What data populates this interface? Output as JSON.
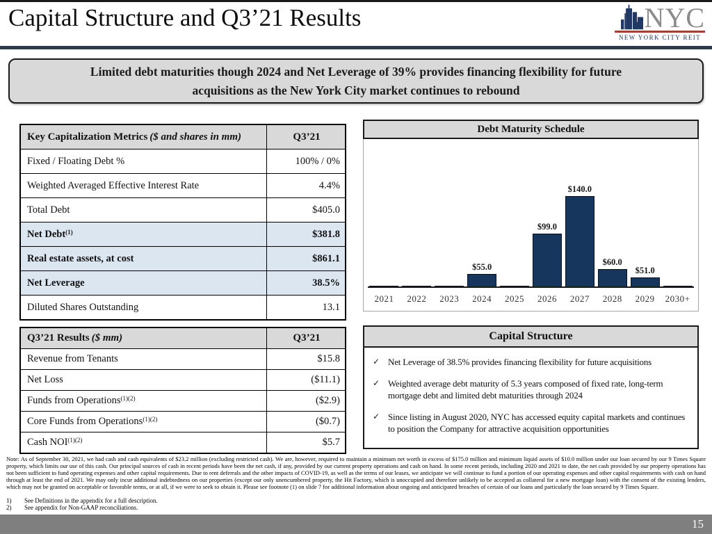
{
  "slide": {
    "title": "Capital Structure and Q3’21 Results",
    "banner": "Limited debt maturities though 2024 and Net Leverage of 39% provides financing flexibility for future acquisitions as the New York City market continues to rebound",
    "page_number": "15"
  },
  "logo": {
    "text": "NYC",
    "subtext": "NEW YORK CITY REIT"
  },
  "colors": {
    "bar_navy": "#17365D",
    "header_gray": "#D9D9D9",
    "highlight_blue": "#DCE6F1",
    "footer_gray": "#7F7F7F",
    "logo_red": "#A43E36",
    "logo_navy": "#1F3864"
  },
  "cap_table": {
    "header_label": "Key Capitalization Metrics",
    "header_note": "($ and shares in mm)",
    "header_value": "Q3’21",
    "rows": [
      {
        "label": "Fixed / Floating Debt %",
        "sup": "",
        "value": "100% / 0%"
      },
      {
        "label": "Weighted Averaged Effective Interest Rate",
        "sup": "",
        "value": "4.4%"
      },
      {
        "label": "Total Debt",
        "sup": "",
        "value": "$405.0"
      },
      {
        "label": "Net Debt",
        "sup": "(1)",
        "value": "$381.8"
      },
      {
        "label": "Real estate assets, at cost",
        "sup": "",
        "value": "$861.1"
      },
      {
        "label": "Net Leverage",
        "sup": "",
        "value": "38.5%"
      },
      {
        "label": "Diluted Shares Outstanding",
        "sup": "",
        "value": "13.1"
      }
    ]
  },
  "results_table": {
    "header_label": "Q3’21 Results",
    "header_note": "($ mm)",
    "header_value": "Q3’21",
    "rows": [
      {
        "label": "Revenue from Tenants",
        "sup": "",
        "value": "$15.8"
      },
      {
        "label": "Net Loss",
        "sup": "",
        "value": "($11.1)"
      },
      {
        "label": "Funds from Operations",
        "sup": "(1)(2)",
        "value": "($2.9)"
      },
      {
        "label": "Core Funds from Operations",
        "sup": "(1)(2)",
        "value": "($0.7)"
      },
      {
        "label": "Cash NOI",
        "sup": "(1)(2)",
        "value": "$5.7"
      }
    ]
  },
  "chart_data": {
    "type": "bar",
    "title": "Debt Maturity Schedule",
    "categories": [
      "2021",
      "2022",
      "2023",
      "2024",
      "2025",
      "2026",
      "2027",
      "2028",
      "2029",
      "2030+"
    ],
    "values": [
      0,
      0,
      0,
      55,
      0,
      99,
      140,
      60,
      51,
      0
    ],
    "labels": [
      "",
      "",
      "",
      "$55.0",
      "",
      "$99.0",
      "$140.0",
      "$60.0",
      "$51.0",
      ""
    ],
    "xlabel": "",
    "ylabel": "",
    "ylim": [
      40,
      150
    ],
    "grid": false,
    "legend": false,
    "bar_color": "#17365D"
  },
  "capital_structure": {
    "title": "Capital Structure",
    "check_glyph": "✓",
    "bullets": [
      "Net Leverage of 38.5% provides financing flexibility for future acquisitions",
      "Weighted average debt maturity of 5.3 years composed of fixed rate, long-term mortgage debt and limited debt maturities through 2024",
      "Since listing in August 2020, NYC has accessed equity capital markets and continues to position the Company for attractive acquisition opportunities"
    ]
  },
  "footnotes": {
    "note": "Note: As of September 30, 2021, we had cash and cash equivalents of $23.2 million (excluding restricted cash). We are, however, required to maintain a minimum net worth in excess of $175.0 million and minimum liquid assets of $10.0 million under our loan secured by our 9 Times Square property, which limits our use of this cash. Our principal sources of cash in recent periods have been the net cash, if any, provided by our current property operations and cash on hand. In some recent periods, including 2020 and 2021 to date, the net cash provided by our property operations has not been sufficient to fund operating expenses and other capital requirements. Due to rent deferrals and the other impacts of COVID-19, as well as the terms of our leases, we anticipate we will continue to fund a portion of our operating expenses and other capital requirements with cash on hand through at least the end of 2021. We may only incur additional indebtedness on our properties (except our only unencumbered property, the Hit Factory, which is unoccupied and therefore unlikely to be accepted as collateral for a new mortgage loan) with the consent of the existing lenders, which may not be granted on acceptable or favorable terms, or at all, if we were to seek to obtain it. Please see footnote (1) on slide 7 for additional information about ongoing and anticipated breaches of certain of our loans and particularly the loan secured by 9 Times Square.",
    "items": [
      {
        "num": "1)",
        "text": "See Definitions in the appendix for a full description."
      },
      {
        "num": "2)",
        "text": "See appendix for Non-GAAP reconciliations."
      }
    ]
  }
}
